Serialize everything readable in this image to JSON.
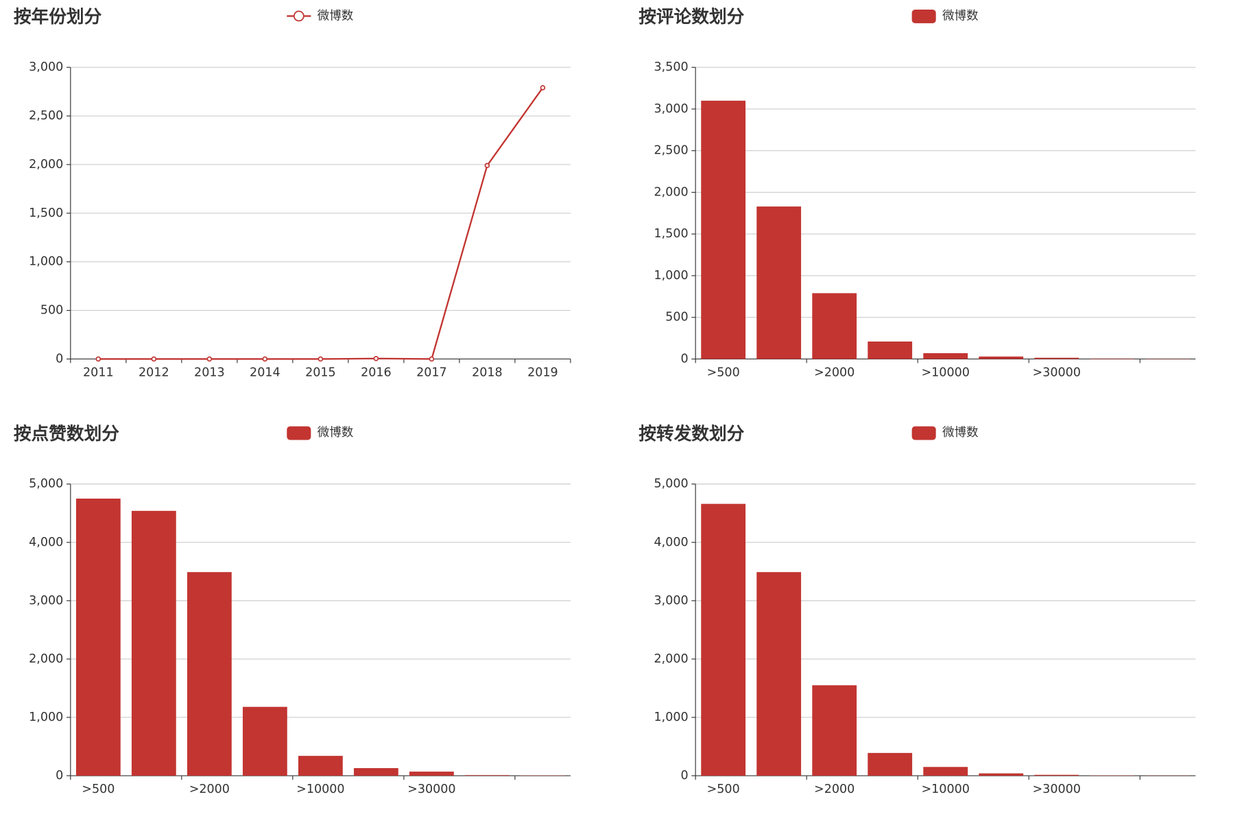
{
  "chart_data": [
    {
      "type": "line",
      "title": "按年份划分",
      "categories": [
        "2011",
        "2012",
        "2013",
        "2014",
        "2015",
        "2016",
        "2017",
        "2018",
        "2019"
      ],
      "series": [
        {
          "name": "微博数",
          "color": "#c23531",
          "values": [
            0,
            0,
            0,
            0,
            0,
            5,
            0,
            1990,
            2790
          ]
        }
      ],
      "ylim": [
        0,
        3000
      ],
      "yticks": [
        0,
        500,
        {
          "value": 1000,
          "label": "1,000"
        },
        {
          "value": 1500,
          "label": "1,500"
        },
        {
          "value": 2000,
          "label": "2,000"
        },
        {
          "value": 2500,
          "label": "2,500"
        },
        {
          "value": 3000,
          "label": "3,000"
        }
      ],
      "grid": true
    },
    {
      "type": "bar",
      "title": "按评论数划分",
      "categories": [
        ">500",
        null,
        ">2000",
        null,
        ">10000",
        null,
        ">30000",
        null,
        null
      ],
      "series": [
        {
          "name": "微博数",
          "color": "#c23531",
          "values": [
            3100,
            1830,
            790,
            210,
            70,
            30,
            15,
            5,
            3
          ]
        }
      ],
      "ylim": [
        0,
        3500
      ],
      "yticks": [
        0,
        500,
        {
          "value": 1000,
          "label": "1,000"
        },
        {
          "value": 1500,
          "label": "1,500"
        },
        {
          "value": 2000,
          "label": "2,000"
        },
        {
          "value": 2500,
          "label": "2,500"
        },
        {
          "value": 3000,
          "label": "3,000"
        },
        {
          "value": 3500,
          "label": "3,500"
        }
      ],
      "grid": true
    },
    {
      "type": "bar",
      "title": "按点赞数划分",
      "categories": [
        ">500",
        null,
        ">2000",
        null,
        ">10000",
        null,
        ">30000",
        null,
        null
      ],
      "series": [
        {
          "name": "微博数",
          "color": "#c23531",
          "values": [
            4750,
            4540,
            3490,
            1180,
            340,
            130,
            70,
            10,
            5
          ]
        }
      ],
      "ylim": [
        0,
        5000
      ],
      "yticks": [
        0,
        {
          "value": 1000,
          "label": "1,000"
        },
        {
          "value": 2000,
          "label": "2,000"
        },
        {
          "value": 3000,
          "label": "3,000"
        },
        {
          "value": 4000,
          "label": "4,000"
        },
        {
          "value": 5000,
          "label": "5,000"
        }
      ],
      "grid": true
    },
    {
      "type": "bar",
      "title": "按转发数划分",
      "categories": [
        ">500",
        null,
        ">2000",
        null,
        ">10000",
        null,
        ">30000",
        null,
        null
      ],
      "series": [
        {
          "name": "微博数",
          "color": "#c23531",
          "values": [
            4660,
            3490,
            1550,
            390,
            150,
            40,
            15,
            5,
            3
          ]
        }
      ],
      "ylim": [
        0,
        5000
      ],
      "yticks": [
        0,
        {
          "value": 1000,
          "label": "1,000"
        },
        {
          "value": 2000,
          "label": "2,000"
        },
        {
          "value": 3000,
          "label": "3,000"
        },
        {
          "value": 4000,
          "label": "4,000"
        },
        {
          "value": 5000,
          "label": "5,000"
        }
      ],
      "grid": true
    }
  ]
}
